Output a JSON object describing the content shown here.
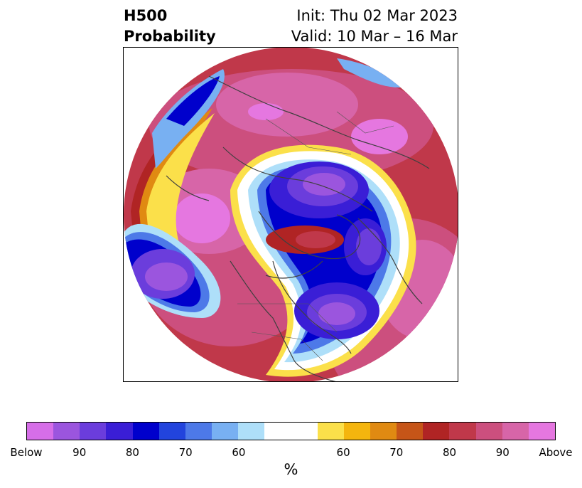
{
  "header": {
    "product": "H500",
    "subtitle": "Probability",
    "init": "Init: Thu 02 Mar 2023",
    "valid": "Valid: 10 Mar – 16 Mar"
  },
  "map": {
    "projection": "north-polar-stereographic",
    "features": [
      "continents",
      "country-borders",
      "state-province-borders"
    ]
  },
  "colorbar": {
    "colors": [
      "#d66ee8",
      "#9b55de",
      "#6b3ddc",
      "#3a1ed6",
      "#0000cc",
      "#2244dd",
      "#4d79e8",
      "#78b0f2",
      "#aedff9",
      "#ffffff",
      "#fbe04a",
      "#f4b50e",
      "#e08a12",
      "#c65518",
      "#b02424",
      "#c0384a",
      "#cc4f7e",
      "#d765a8",
      "#e577e0"
    ],
    "tick_labels": [
      "Below",
      "90",
      "80",
      "70",
      "60",
      "60",
      "70",
      "80",
      "90",
      "Above"
    ],
    "unit": "%"
  }
}
